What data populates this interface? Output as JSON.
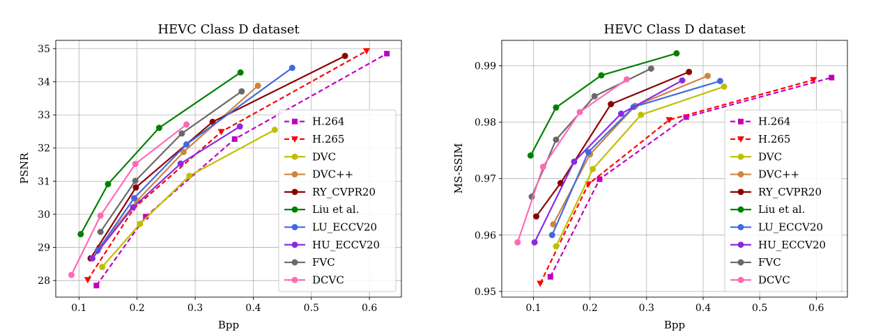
{
  "chart_data": [
    {
      "type": "line",
      "title": "HEVC Class D dataset",
      "xlabel": "Bpp",
      "ylabel": "PSNR",
      "xlim": [
        0.06,
        0.655
      ],
      "ylim": [
        27.5,
        35.25
      ],
      "xticks": [
        "0.1",
        "0.2",
        "0.3",
        "0.4",
        "0.5",
        "0.6"
      ],
      "xtick_values": [
        0.1,
        0.2,
        0.3,
        0.4,
        0.5,
        0.6
      ],
      "yticks": [
        "28",
        "29",
        "30",
        "31",
        "32",
        "33",
        "34",
        "35"
      ],
      "ytick_values": [
        28,
        29,
        30,
        31,
        32,
        33,
        34,
        35
      ],
      "grid": true,
      "legend_position": "lower-right",
      "series": [
        {
          "name": "H.264",
          "color": "#bf00bf",
          "marker": "square",
          "dashed": true,
          "x": [
            0.13,
            0.215,
            0.368,
            0.63
          ],
          "y": [
            27.85,
            29.93,
            32.27,
            34.85
          ]
        },
        {
          "name": "H.265",
          "color": "#ff0000",
          "marker": "triangle-down",
          "dashed": true,
          "x": [
            0.115,
            0.195,
            0.345,
            0.595
          ],
          "y": [
            28.02,
            30.19,
            32.49,
            34.93
          ]
        },
        {
          "name": "DVC",
          "color": "#bfbf00",
          "marker": "circle",
          "dashed": false,
          "x": [
            0.14,
            0.205,
            0.29,
            0.437
          ],
          "y": [
            28.41,
            29.71,
            31.16,
            32.55
          ]
        },
        {
          "name": "DVC++",
          "color": "#cd853f",
          "marker": "circle",
          "dashed": false,
          "x": [
            0.135,
            0.2,
            0.28,
            0.408
          ],
          "y": [
            29.0,
            30.41,
            31.88,
            33.88
          ]
        },
        {
          "name": "RY_CVPR20",
          "color": "#8b0000",
          "marker": "circle",
          "dashed": false,
          "x": [
            0.12,
            0.198,
            0.33,
            0.558
          ],
          "y": [
            28.67,
            30.81,
            32.79,
            34.78
          ]
        },
        {
          "name": "Liu et al.",
          "color": "#008000",
          "marker": "circle",
          "dashed": false,
          "x": [
            0.103,
            0.15,
            0.238,
            0.378
          ],
          "y": [
            29.4,
            30.91,
            32.61,
            34.28
          ]
        },
        {
          "name": "LU_ECCV20",
          "color": "#4169e1",
          "marker": "circle",
          "dashed": false,
          "x": [
            0.132,
            0.195,
            0.285,
            0.467
          ],
          "y": [
            28.9,
            30.49,
            32.11,
            34.42
          ]
        },
        {
          "name": "HU_ECCV20",
          "color": "#8a2be2",
          "marker": "circle",
          "dashed": false,
          "x": [
            0.123,
            0.193,
            0.275,
            0.377
          ],
          "y": [
            28.67,
            30.21,
            31.53,
            32.65
          ]
        },
        {
          "name": "FVC",
          "color": "#696969",
          "marker": "circle",
          "dashed": false,
          "x": [
            0.137,
            0.197,
            0.277,
            0.38
          ],
          "y": [
            29.47,
            31.01,
            32.44,
            33.71
          ]
        },
        {
          "name": "DCVC",
          "color": "#ff69b4",
          "marker": "circle",
          "dashed": false,
          "x": [
            0.087,
            0.137,
            0.197,
            0.285
          ],
          "y": [
            28.17,
            29.96,
            31.52,
            32.71
          ]
        }
      ]
    },
    {
      "type": "line",
      "title": "HEVC Class D dataset",
      "xlabel": "Bpp",
      "ylabel": "MS-SSIM",
      "xlim": [
        0.044,
        0.655
      ],
      "ylim": [
        0.949,
        0.9945
      ],
      "xticks": [
        "0.1",
        "0.2",
        "0.3",
        "0.4",
        "0.5",
        "0.6"
      ],
      "xtick_values": [
        0.1,
        0.2,
        0.3,
        0.4,
        0.5,
        0.6
      ],
      "yticks": [
        "0.95",
        "0.96",
        "0.97",
        "0.98",
        "0.99"
      ],
      "ytick_values": [
        0.95,
        0.96,
        0.97,
        0.98,
        0.99
      ],
      "grid": true,
      "legend_position": "lower-right",
      "series": [
        {
          "name": "H.264",
          "color": "#bf00bf",
          "marker": "square",
          "dashed": true,
          "x": [
            0.13,
            0.217,
            0.37,
            0.627
          ],
          "y": [
            0.9526,
            0.9699,
            0.9809,
            0.9879
          ]
        },
        {
          "name": "H.265",
          "color": "#ff0000",
          "marker": "triangle-down",
          "dashed": true,
          "x": [
            0.112,
            0.197,
            0.34,
            0.595
          ],
          "y": [
            0.9514,
            0.969,
            0.9804,
            0.9875
          ]
        },
        {
          "name": "DVC",
          "color": "#bfbf00",
          "marker": "circle",
          "dashed": false,
          "x": [
            0.14,
            0.205,
            0.29,
            0.437
          ],
          "y": [
            0.958,
            0.9717,
            0.9813,
            0.9863
          ]
        },
        {
          "name": "DVC++",
          "color": "#cd853f",
          "marker": "circle",
          "dashed": false,
          "x": [
            0.135,
            0.2,
            0.28,
            0.408
          ],
          "y": [
            0.9619,
            0.9743,
            0.9829,
            0.9882
          ]
        },
        {
          "name": "RY_CVPR20",
          "color": "#8b0000",
          "marker": "circle",
          "dashed": false,
          "x": [
            0.105,
            0.148,
            0.237,
            0.375
          ],
          "y": [
            0.9633,
            0.9692,
            0.9832,
            0.9889
          ]
        },
        {
          "name": "Liu et al.",
          "color": "#008000",
          "marker": "circle",
          "dashed": false,
          "x": [
            0.095,
            0.14,
            0.22,
            0.353
          ],
          "y": [
            0.9741,
            0.9826,
            0.9883,
            0.9922
          ]
        },
        {
          "name": "LU_ECCV20",
          "color": "#4169e1",
          "marker": "circle",
          "dashed": false,
          "x": [
            0.133,
            0.197,
            0.277,
            0.43
          ],
          "y": [
            0.96,
            0.9747,
            0.9827,
            0.9873
          ]
        },
        {
          "name": "HU_ECCV20",
          "color": "#8a2be2",
          "marker": "circle",
          "dashed": false,
          "x": [
            0.102,
            0.172,
            0.255,
            0.363
          ],
          "y": [
            0.9587,
            0.973,
            0.9815,
            0.9874
          ]
        },
        {
          "name": "FVC",
          "color": "#696969",
          "marker": "circle",
          "dashed": false,
          "x": [
            0.097,
            0.14,
            0.208,
            0.308
          ],
          "y": [
            0.9668,
            0.9769,
            0.9846,
            0.9895
          ]
        },
        {
          "name": "DCVC",
          "color": "#ff69b4",
          "marker": "circle",
          "dashed": false,
          "x": [
            0.072,
            0.117,
            0.182,
            0.265
          ],
          "y": [
            0.9587,
            0.9721,
            0.9818,
            0.9876
          ]
        }
      ]
    }
  ]
}
